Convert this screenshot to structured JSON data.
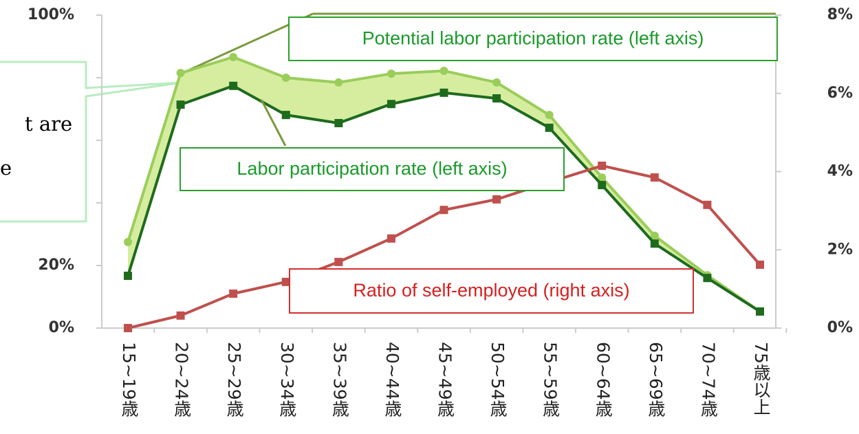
{
  "chart_data": {
    "type": "line",
    "categories": [
      "15~19歳",
      "20~24歳",
      "25~29歳",
      "30~34歳",
      "35~39歳",
      "40~44歳",
      "45~49歳",
      "50~54歳",
      "55~59歳",
      "60~64歳",
      "65~69歳",
      "70~74歳",
      "75歳以上"
    ],
    "series": [
      {
        "name": "Potential labor participation rate (left axis)",
        "color": "#9acd5a",
        "axis": "y",
        "values": [
          27.5,
          81.5,
          86.6,
          80,
          78.5,
          81.3,
          82.2,
          78.5,
          68.1,
          48.1,
          29.5,
          16.9,
          5.3
        ]
      },
      {
        "name": "Labor participation rate (left axis)",
        "color": "#1e6b1e",
        "axis": "y",
        "values": [
          16.7,
          71.4,
          77.4,
          68.1,
          65.5,
          71.6,
          75.2,
          73.4,
          64.0,
          45.7,
          27.0,
          16.0,
          5.3
        ]
      },
      {
        "name": "Ratio of self-employed (right axis)",
        "color": "#c0504d",
        "axis": "y2",
        "values": [
          0,
          0.32,
          0.88,
          1.18,
          1.69,
          2.29,
          3.02,
          3.29,
          3.73,
          4.15,
          3.85,
          3.15,
          1.62
        ]
      }
    ],
    "ylim": [
      0,
      100
    ],
    "yticks": [
      {
        "value": 0,
        "label": "0%"
      },
      {
        "value": 20,
        "label": "20%"
      },
      {
        "value": 100,
        "label": "100%"
      }
    ],
    "minor_yticks": [
      40,
      60,
      80
    ],
    "y2lim": [
      0,
      8
    ],
    "y2ticks": [
      {
        "value": 0,
        "label": "0%"
      },
      {
        "value": 2,
        "label": "2%"
      },
      {
        "value": 4,
        "label": "4%"
      },
      {
        "value": 6,
        "label": "6%"
      },
      {
        "value": 8,
        "label": "8%"
      }
    ],
    "band_color": "#d6eda0",
    "annotations": [
      "t are",
      "e"
    ]
  }
}
